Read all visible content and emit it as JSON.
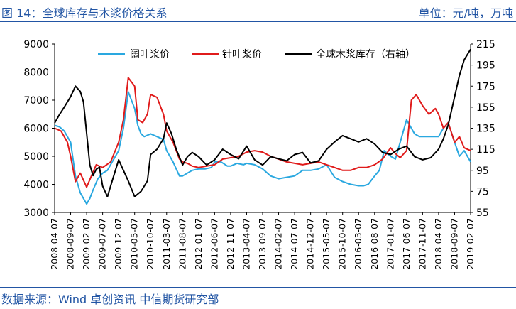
{
  "header": {
    "title": "图 14：全球库存与木浆价格关系",
    "unit": "单位：元/吨，万吨"
  },
  "footer": {
    "source": "数据来源：Wind 卓创资讯 中信期货研究部"
  },
  "colors": {
    "hardwood": "#2aa8e0",
    "softwood": "#e01b1b",
    "inventory": "#000000",
    "brand": "#2255a4"
  },
  "chart_data": {
    "type": "line",
    "x_ticks": [
      "2008-04-07",
      "2008-09-07",
      "2009-02-07",
      "2009-07-07",
      "2009-12-07",
      "2010-05-07",
      "2010-10-07",
      "2011-03-07",
      "2011-08-07",
      "2012-01-07",
      "2012-06-07",
      "2012-11-07",
      "2013-04-07",
      "2013-09-07",
      "2014-02-07",
      "2014-07-07",
      "2014-12-07",
      "2015-05-07",
      "2015-10-07",
      "2016-03-07",
      "2016-08-07",
      "2017-01-07",
      "2017-06-07",
      "2017-11-07",
      "2018-04-07",
      "2018-09-07",
      "2019-02-07"
    ],
    "y_left": {
      "min": 3000,
      "max": 9000,
      "ticks": [
        "3000",
        "4000",
        "5000",
        "6000",
        "7000",
        "8000",
        "9000"
      ]
    },
    "y_right": {
      "min": 55,
      "max": 215,
      "ticks": [
        "55",
        "75",
        "95",
        "115",
        "135",
        "155",
        "175",
        "195",
        "215"
      ]
    },
    "series": [
      {
        "name": "阔叶浆价",
        "axis": "left",
        "key": "hardwood",
        "x": [
          0,
          0.3,
          0.6,
          1,
          1.3,
          1.6,
          2,
          2.2,
          2.4,
          2.7,
          3,
          3.3,
          3.6,
          4,
          4.3,
          4.6,
          5,
          5.2,
          5.4,
          5.6,
          6,
          6.4,
          6.8,
          7,
          7.4,
          7.8,
          8,
          8.3,
          8.6,
          9,
          9.4,
          9.8,
          10,
          10.4,
          10.8,
          11,
          11.4,
          11.8,
          12,
          12.5,
          13,
          13.5,
          14,
          14.5,
          15,
          15.5,
          16,
          16.5,
          17,
          17.5,
          18,
          18.5,
          19,
          19.3,
          19.6,
          20,
          20.3,
          20.6,
          21,
          21.3,
          21.6,
          22,
          22.5,
          22.8,
          23,
          23.3,
          23.6,
          24,
          24.3,
          24.6,
          25,
          25.3,
          25.6,
          26
        ],
        "y": [
          6100,
          6050,
          5900,
          5500,
          4300,
          3700,
          3300,
          3500,
          3800,
          4200,
          4400,
          4500,
          4800,
          5200,
          6000,
          7300,
          6700,
          6100,
          5800,
          5700,
          5800,
          5700,
          5600,
          5200,
          4800,
          4300,
          4300,
          4400,
          4500,
          4550,
          4550,
          4600,
          4800,
          4800,
          4650,
          4650,
          4750,
          4700,
          4750,
          4700,
          4550,
          4300,
          4200,
          4250,
          4300,
          4500,
          4500,
          4550,
          4700,
          4250,
          4100,
          4000,
          3950,
          3950,
          4000,
          4300,
          4500,
          5200,
          5000,
          4900,
          5500,
          6300,
          5800,
          5700,
          5700,
          5700,
          5700,
          5700,
          6000,
          6200,
          5500,
          5000,
          5200,
          4800
        ]
      },
      {
        "name": "针叶浆价",
        "axis": "left",
        "key": "softwood",
        "x": [
          0,
          0.4,
          0.8,
          1,
          1.3,
          1.6,
          2,
          2.3,
          2.6,
          3,
          3.5,
          4,
          4.3,
          4.6,
          5,
          5.2,
          5.5,
          5.8,
          6,
          6.4,
          6.8,
          7,
          7.4,
          7.8,
          8,
          8.3,
          8.6,
          9,
          9.5,
          10,
          10.5,
          11,
          11.5,
          12,
          12.5,
          13,
          13.5,
          14,
          14.5,
          15,
          15.5,
          16,
          16.5,
          17,
          17.5,
          18,
          18.5,
          19,
          19.5,
          20,
          20.5,
          21,
          21.3,
          21.6,
          22,
          22.3,
          22.6,
          23,
          23.4,
          23.8,
          24,
          24.3,
          24.6,
          25,
          25.3,
          25.6,
          26
        ],
        "y": [
          6000,
          5900,
          5500,
          5000,
          4100,
          4400,
          3900,
          4300,
          4700,
          4600,
          4800,
          5500,
          6300,
          7800,
          7500,
          6300,
          6200,
          6500,
          7200,
          7100,
          6500,
          5900,
          5500,
          4900,
          4800,
          4750,
          4650,
          4600,
          4650,
          4700,
          4900,
          4950,
          5000,
          5150,
          5200,
          5150,
          5000,
          4900,
          4800,
          4750,
          4700,
          4750,
          4800,
          4700,
          4600,
          4500,
          4500,
          4600,
          4600,
          4700,
          4900,
          5300,
          5100,
          4950,
          5200,
          7000,
          7200,
          6800,
          6500,
          6700,
          6500,
          6000,
          6200,
          5500,
          5700,
          5300,
          5200
        ]
      },
      {
        "name": "全球木浆库存（右轴）",
        "axis": "right",
        "key": "inventory",
        "x": [
          0,
          0.3,
          0.6,
          1,
          1.3,
          1.6,
          1.8,
          2,
          2.2,
          2.4,
          2.6,
          2.8,
          3,
          3.3,
          3.6,
          4,
          4.3,
          4.6,
          5,
          5.4,
          5.8,
          6,
          6.4,
          6.8,
          7,
          7.3,
          7.6,
          8,
          8.3,
          8.6,
          9,
          9.5,
          10,
          10.5,
          11,
          11.5,
          12,
          12.5,
          13,
          13.5,
          14,
          14.5,
          15,
          15.5,
          16,
          16.5,
          17,
          17.5,
          18,
          18.5,
          19,
          19.5,
          20,
          20.5,
          21,
          21.5,
          22,
          22.5,
          23,
          23.5,
          24,
          24.3,
          24.6,
          25,
          25.3,
          25.6,
          26
        ],
        "y": [
          140,
          148,
          155,
          165,
          175,
          170,
          160,
          130,
          100,
          90,
          96,
          98,
          80,
          70,
          85,
          105,
          95,
          85,
          70,
          75,
          85,
          110,
          115,
          125,
          140,
          130,
          115,
          100,
          108,
          112,
          108,
          100,
          105,
          115,
          110,
          106,
          118,
          105,
          100,
          108,
          106,
          104,
          110,
          112,
          102,
          104,
          115,
          122,
          128,
          125,
          122,
          125,
          120,
          112,
          110,
          115,
          118,
          108,
          105,
          107,
          115,
          125,
          138,
          165,
          185,
          200,
          210
        ]
      }
    ]
  }
}
